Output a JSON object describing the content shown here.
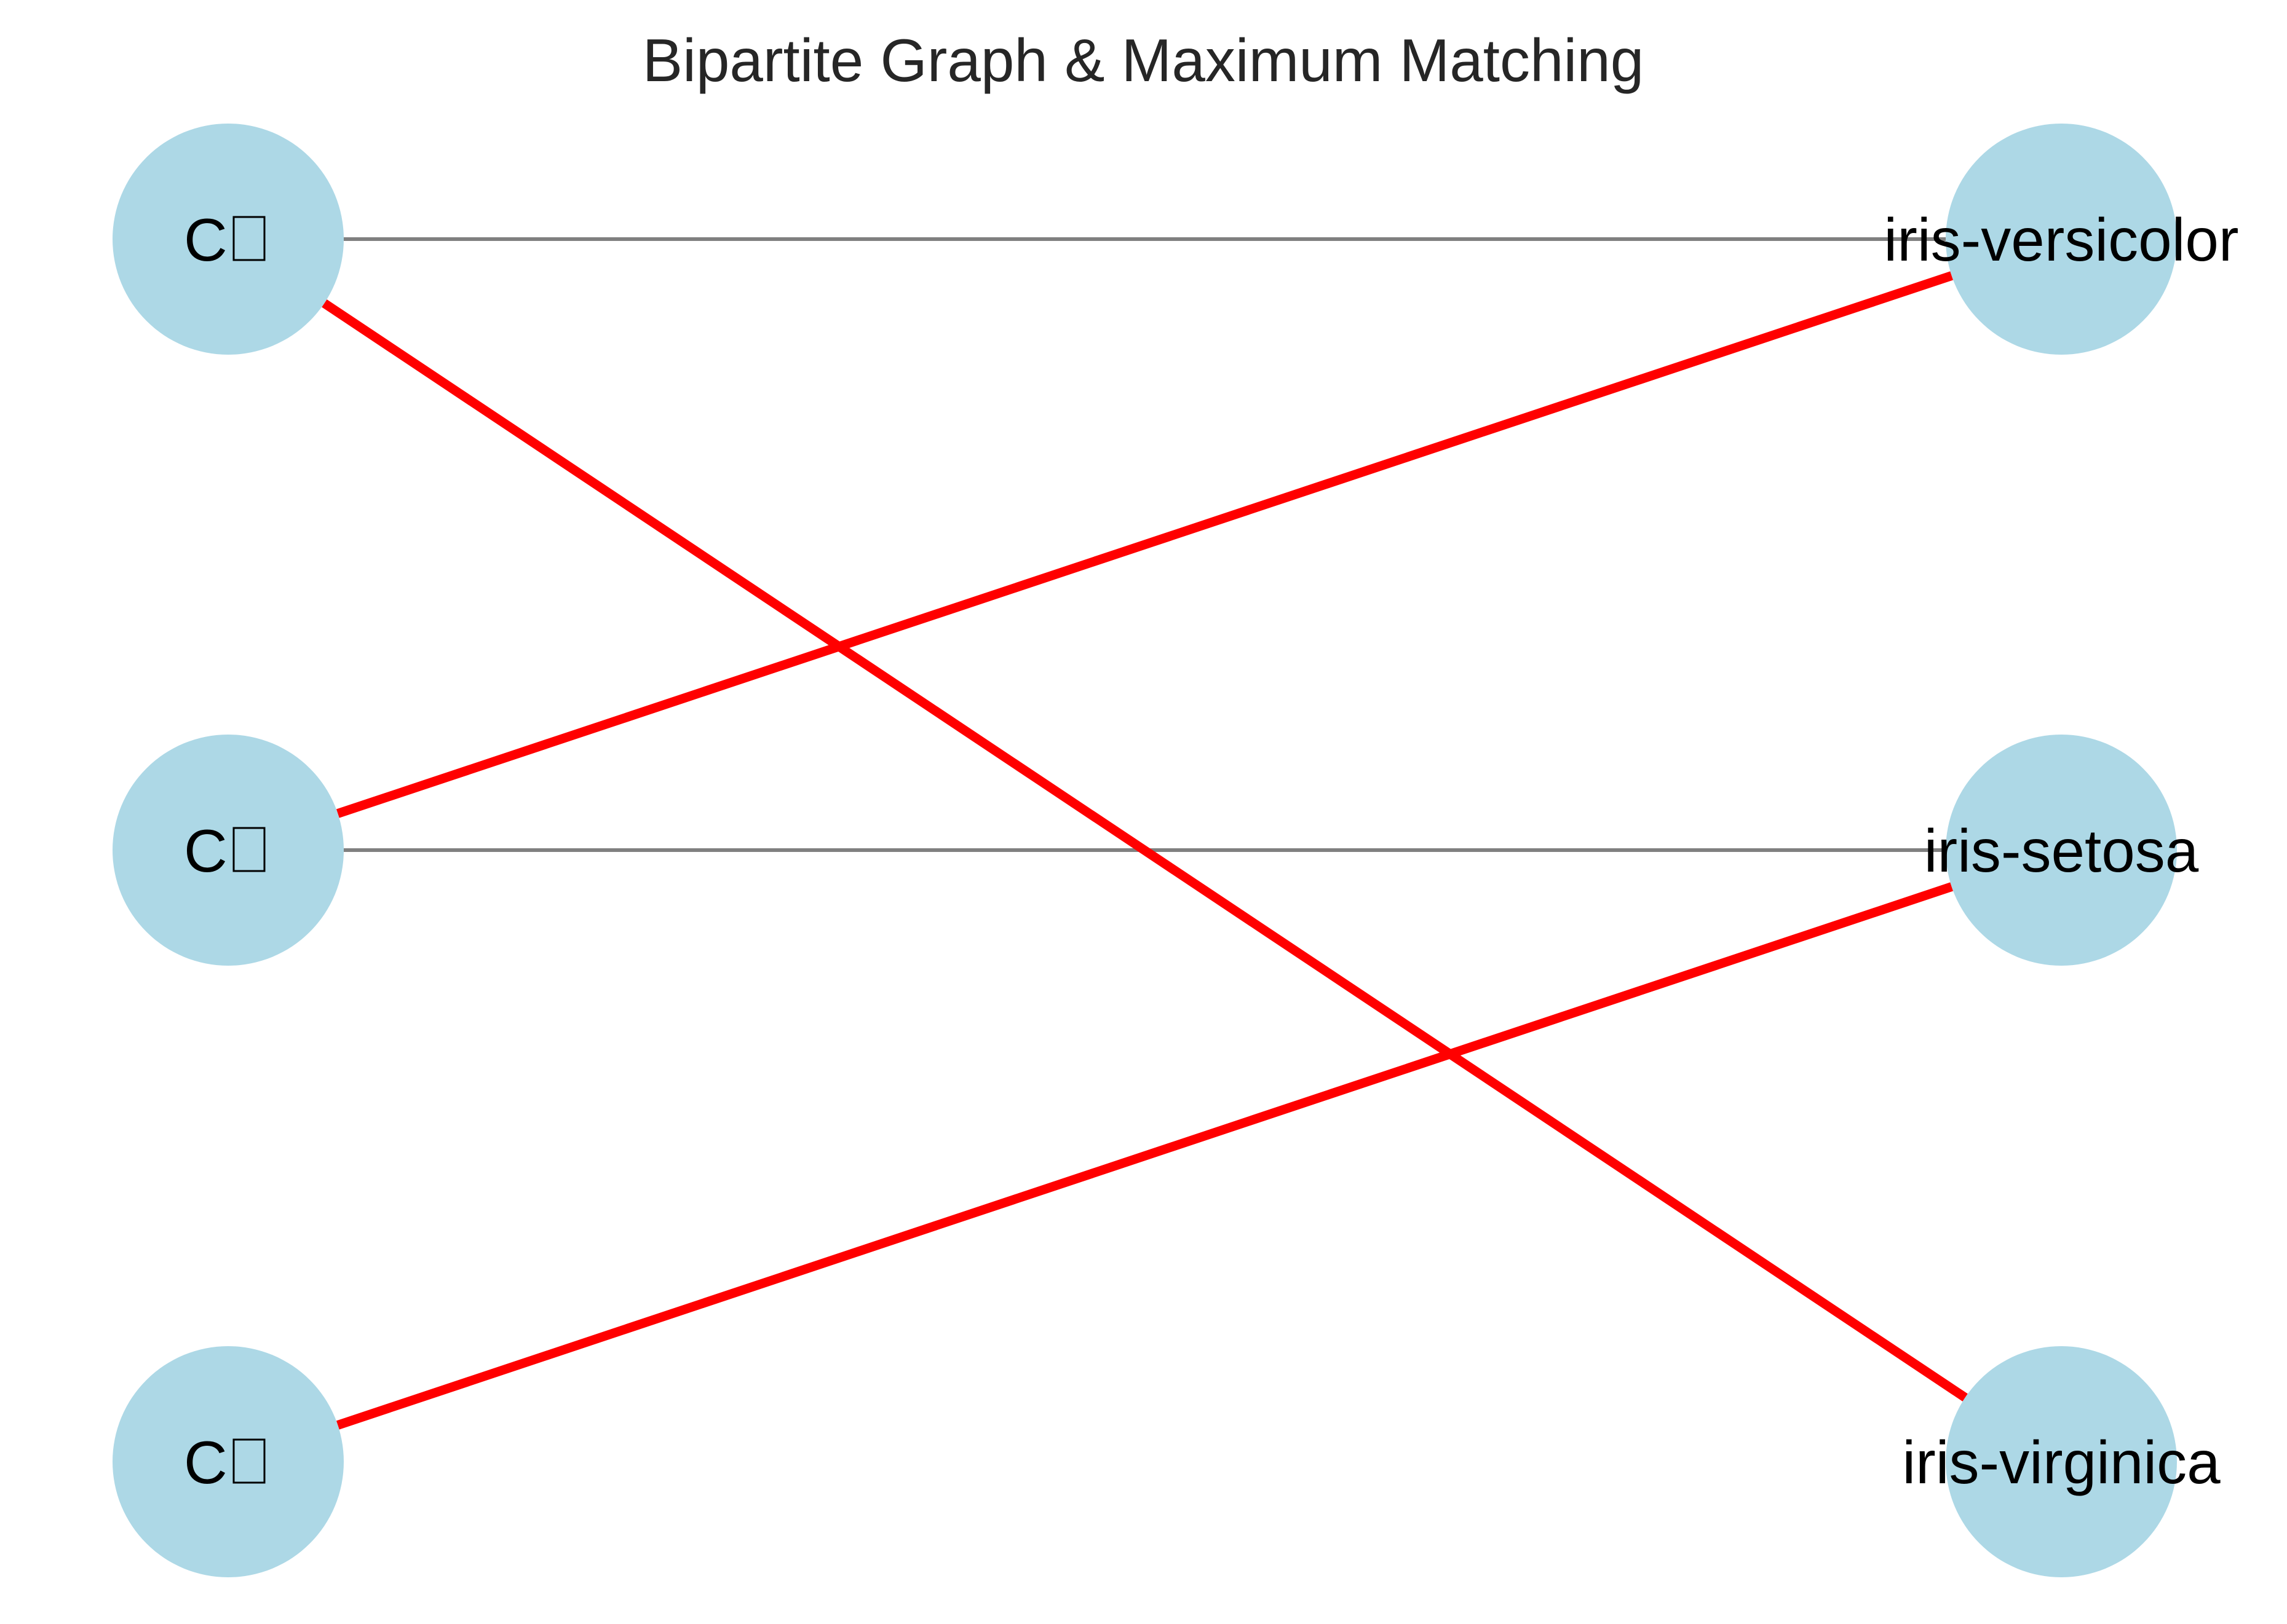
{
  "title": "Bipartite Graph & Maximum Matching",
  "colors": {
    "node_fill": "#add8e6",
    "edge": "#808080",
    "matching_edge": "#ff0000",
    "label": "#000000",
    "title": "#262626"
  },
  "nodes": {
    "left": [
      {
        "id": "c1",
        "label": "C"
      },
      {
        "id": "c2",
        "label": "C"
      },
      {
        "id": "c3",
        "label": "C"
      }
    ],
    "right": [
      {
        "id": "iris-versicolor",
        "label": "iris-versicolor"
      },
      {
        "id": "iris-setosa",
        "label": "iris-setosa"
      },
      {
        "id": "iris-virginica",
        "label": "iris-virginica"
      }
    ]
  },
  "edges": [
    {
      "from": "c1",
      "to": "iris-versicolor",
      "matched": false
    },
    {
      "from": "c2",
      "to": "iris-setosa",
      "matched": false
    },
    {
      "from": "c1",
      "to": "iris-virginica",
      "matched": true
    },
    {
      "from": "c2",
      "to": "iris-versicolor",
      "matched": true
    },
    {
      "from": "c3",
      "to": "iris-setosa",
      "matched": true
    }
  ]
}
